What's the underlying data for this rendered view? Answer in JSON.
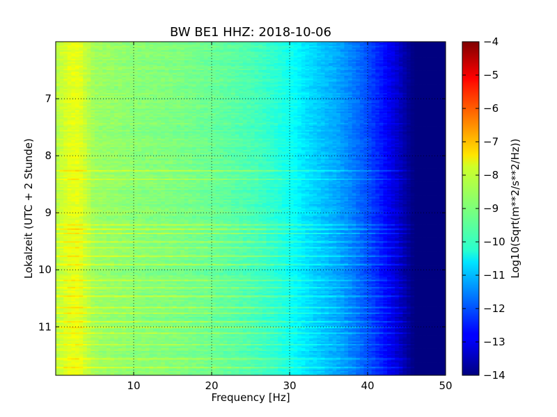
{
  "chart_data": {
    "type": "heatmap",
    "title": "BW BE1 HHZ: 2018-10-06",
    "xlabel": "Frequency [Hz]",
    "ylabel": "Lokalzeit (UTC + 2 Stunde)",
    "xlim": [
      0,
      50
    ],
    "ylim": [
      6.0,
      11.85
    ],
    "x_ticks": [
      10,
      20,
      30,
      40,
      50
    ],
    "x_tick_labels": [
      "10",
      "20",
      "30",
      "40",
      "50"
    ],
    "y_ticks": [
      7,
      8,
      9,
      10,
      11
    ],
    "y_tick_labels": [
      "7",
      "8",
      "9",
      "10",
      "11"
    ],
    "grid": true,
    "colormap": "jet",
    "colorbar": {
      "label": "Log10(Sqrt(m**2/s**2/Hz))",
      "range": [
        -14,
        -4
      ],
      "ticks": [
        -4,
        -5,
        -6,
        -7,
        -8,
        -9,
        -10,
        -11,
        -12,
        -13,
        -14
      ],
      "tick_labels": [
        "−4",
        "−5",
        "−6",
        "−7",
        "−8",
        "−9",
        "−10",
        "−11",
        "−12",
        "−13",
        "−14"
      ]
    },
    "spectral_profile": {
      "frequency_hz": [
        0,
        1,
        2,
        3,
        4,
        5,
        10,
        15,
        20,
        25,
        28,
        30,
        32,
        34,
        36,
        38,
        40,
        42,
        44,
        45,
        46,
        50
      ],
      "log10_psd": [
        -8.5,
        -8.2,
        -8.0,
        -8.0,
        -8.4,
        -8.7,
        -8.9,
        -9.0,
        -9.2,
        -9.5,
        -9.8,
        -10.1,
        -10.5,
        -10.8,
        -11.1,
        -11.5,
        -12.0,
        -12.6,
        -13.3,
        -13.7,
        -14.0,
        -14.0
      ]
    },
    "loud_bands_hour": [
      8.25,
      8.4,
      9.2,
      9.27,
      9.35,
      9.5,
      9.6,
      9.75,
      9.9,
      10.18,
      10.3,
      10.45,
      10.65,
      10.75,
      10.9,
      11.0,
      11.1,
      11.3,
      11.55,
      11.7
    ]
  }
}
